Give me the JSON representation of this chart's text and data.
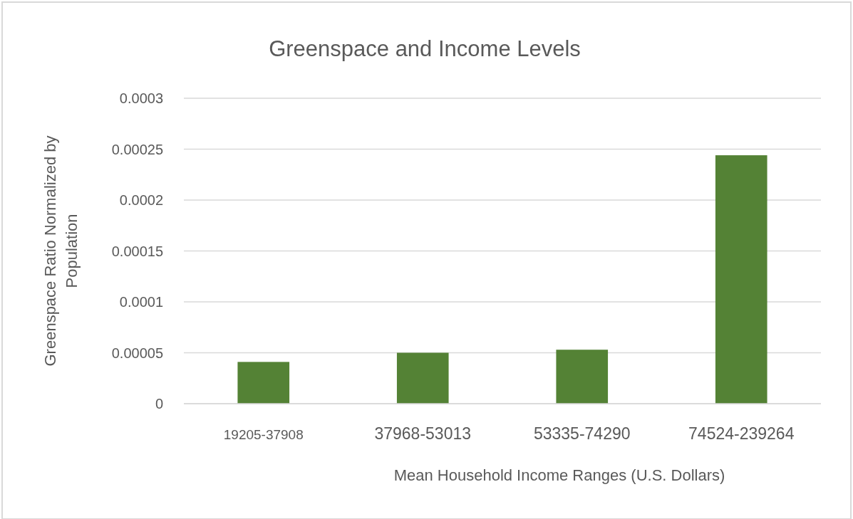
{
  "chart_data": {
    "type": "bar",
    "title": "Greenspace and Income Levels",
    "xlabel": "Mean Household Income Ranges (U.S. Dollars)",
    "ylabel": "Greenspace Ratio Normalized by Population",
    "categories": [
      "19205-37908",
      "37968-53013",
      "53335-74290",
      "74524-239264"
    ],
    "values": [
      4.1e-05,
      5e-05,
      5.3e-05,
      0.000244
    ],
    "color": "#548235",
    "ylim": [
      0,
      0.0003
    ],
    "yticks": [
      0,
      {
        "value": 5e-05,
        "label": "0.00005"
      },
      0.0001,
      0.00015,
      0.0002,
      0.00025,
      0.0003
    ],
    "grid": "y"
  }
}
